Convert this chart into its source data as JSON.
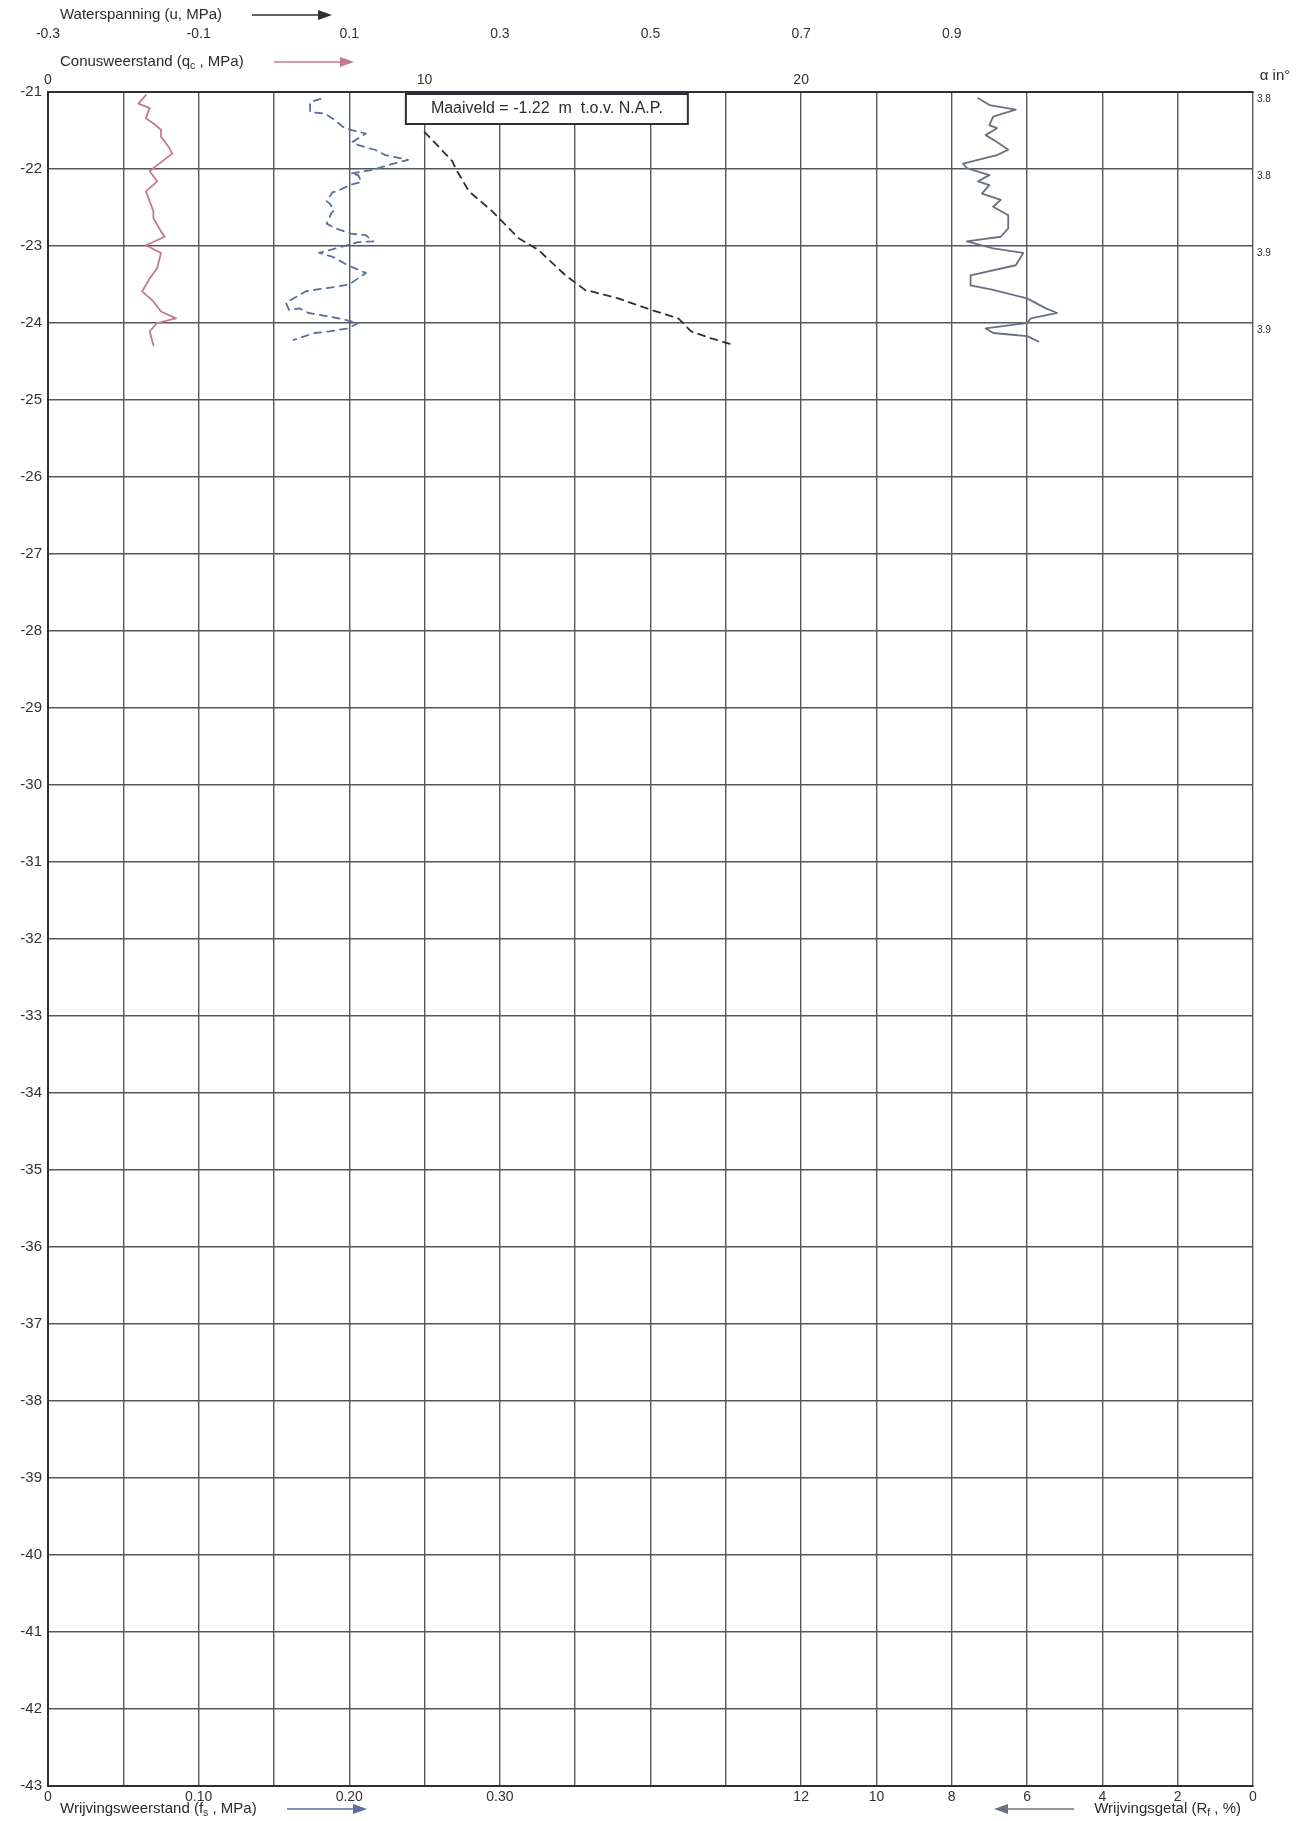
{
  "chart_data": [
    {
      "type": "line",
      "xlabel": "Wrijvingsweerstand (f$_{s}$ , MPa)",
      "x2label": "Conusweerstand (q$_{c}$ , MPa)",
      "xlim": [
        0,
        0.8
      ],
      "xticks": [
        0,
        {
          "value": 0.05,
          "label": null
        },
        {
          "value": 0.1,
          "label": "0.10"
        },
        {
          "value": 0.15,
          "label": null
        },
        {
          "value": 0.2,
          "label": "0.20"
        },
        {
          "value": 0.25,
          "label": null
        },
        {
          "value": 0.3,
          "label": "0.30"
        },
        {
          "value": 0.35,
          "label": null
        },
        {
          "value": 0.4,
          "label": null
        },
        {
          "value": 0.45,
          "label": null
        },
        {
          "value": 0.5,
          "label": null
        },
        {
          "value": 0.55,
          "label": null
        },
        {
          "value": 0.6,
          "label": null
        },
        {
          "value": 0.65,
          "label": null
        },
        {
          "value": 0.7,
          "label": null
        },
        {
          "value": 0.75,
          "label": null
        },
        {
          "value": 0.8,
          "label": null
        }
      ],
      "x2lim": [
        0,
        32
      ],
      "x2ticks": [
        0,
        10,
        20
      ],
      "ylim": [
        -43,
        -21
      ],
      "yticks": [
        -21,
        -22,
        -23,
        -24,
        -25,
        -26,
        -27,
        -28,
        -29,
        -30,
        -31,
        -32,
        -33,
        -34,
        -35,
        -36,
        -37,
        -38,
        -39,
        -40,
        -41,
        -42,
        -43
      ],
      "grid": true,
      "legend": false,
      "marker": "none",
      "annotations": [
        "Maaiveld = -1.22  m  t.o.v. N.A.P."
      ],
      "series": [
        {
          "axis": "x2",
          "color": "#c47a8c",
          "line_style": "solid",
          "x": [
            2.6,
            2.4,
            2.7,
            2.6,
            2.8,
            3.0,
            3.0,
            3.2,
            3.3,
            2.9,
            2.7,
            2.9,
            2.6,
            2.7,
            2.8,
            2.8,
            3.0,
            3.1,
            2.6,
            3.0,
            2.9,
            2.7,
            2.5,
            2.8,
            3.0,
            3.4,
            2.9,
            2.7,
            2.8
          ],
          "values": [
            -21.04,
            -21.15,
            -21.21,
            -21.34,
            -21.41,
            -21.49,
            -21.58,
            -21.71,
            -21.8,
            -21.95,
            -22.03,
            -22.16,
            -22.29,
            -22.42,
            -22.55,
            -22.64,
            -22.81,
            -22.88,
            -22.99,
            -23.09,
            -23.29,
            -23.42,
            -23.59,
            -23.72,
            -23.85,
            -23.94,
            -24.0,
            -24.11,
            -24.29
          ]
        },
        {
          "color": "#5b6f9c",
          "line_style": "dashed",
          "x": [
            0.181,
            0.174,
            0.174,
            0.184,
            0.19,
            0.197,
            0.207,
            0.211,
            0.202,
            0.206,
            0.217,
            0.224,
            0.239,
            0.224,
            0.216,
            0.201,
            0.206,
            0.208,
            0.2,
            0.192,
            0.189,
            0.185,
            0.187,
            0.19,
            0.188,
            0.185,
            0.191,
            0.201,
            0.211,
            0.216,
            0.206,
            0.18,
            0.189,
            0.199,
            0.211,
            0.2,
            0.191,
            0.18,
            0.171,
            0.158,
            0.16,
            0.167,
            0.173,
            0.182,
            0.193,
            0.206,
            0.199,
            0.187,
            0.177,
            0.163
          ],
          "values": [
            -21.09,
            -21.13,
            -21.26,
            -21.28,
            -21.36,
            -21.47,
            -21.52,
            -21.54,
            -21.65,
            -21.69,
            -21.75,
            -21.82,
            -21.88,
            -21.96,
            -22.01,
            -22.06,
            -22.08,
            -22.17,
            -22.21,
            -22.29,
            -22.3,
            -22.42,
            -22.45,
            -22.53,
            -22.58,
            -22.71,
            -22.77,
            -22.84,
            -22.86,
            -22.94,
            -22.95,
            -23.09,
            -23.14,
            -23.25,
            -23.35,
            -23.5,
            -23.53,
            -23.56,
            -23.59,
            -23.74,
            -23.83,
            -23.81,
            -23.87,
            -23.9,
            -23.94,
            -24.0,
            -24.07,
            -24.11,
            -24.13,
            -24.22
          ]
        }
      ]
    },
    {
      "type": "line",
      "xlabel": "Wrijvingsgetal (R$_{f}$ , %)",
      "x2label": "Waterspanning (u, MPa)",
      "y2label": "α in°",
      "xlim": [
        32,
        0
      ],
      "xticks": [
        12,
        10,
        8,
        6,
        4,
        2,
        0
      ],
      "x2lim": [
        -0.3,
        1.3
      ],
      "x2ticks": [
        -0.3,
        -0.1,
        0.1,
        0.3,
        0.5,
        0.7,
        0.9
      ],
      "ylim": [
        -43,
        -21
      ],
      "yticks": [
        -21,
        -22,
        -23,
        -24,
        -25,
        -26,
        -27,
        -28,
        -29,
        -30,
        -31,
        -32,
        -33,
        -34,
        -35,
        -36,
        -37,
        -38,
        -39,
        -40,
        -41,
        -42,
        -43
      ],
      "tick_labels": "x",
      "legend": false,
      "marker": "none",
      "annotations": [
        "3.8",
        "3.8",
        "3.9",
        "3.9"
      ],
      "series": [
        {
          "axis": "x2",
          "color": "#2e3038",
          "line_style": "dashed",
          "x": [
            0.2,
            0.208,
            0.237,
            0.241,
            0.259,
            0.29,
            0.325,
            0.351,
            0.387,
            0.413,
            0.457,
            0.501,
            0.537,
            0.554,
            0.581,
            0.612
          ],
          "values": [
            -21.52,
            -21.6,
            -21.9,
            -21.99,
            -22.29,
            -22.55,
            -22.9,
            -23.05,
            -23.38,
            -23.57,
            -23.68,
            -23.83,
            -23.94,
            -24.11,
            -24.2,
            -24.29
          ]
        },
        {
          "color": "#6b7080",
          "line_style": "solid",
          "x": [
            7.3,
            7.0,
            6.3,
            6.9,
            7.0,
            6.8,
            7.1,
            6.8,
            6.5,
            6.8,
            7.7,
            7.6,
            7.0,
            7.3,
            7.0,
            7.2,
            6.7,
            6.9,
            6.5,
            6.5,
            6.7,
            7.6,
            6.9,
            6.1,
            6.3,
            7.5,
            7.5,
            6.9,
            6.0,
            5.5,
            5.2,
            5.9,
            6.0,
            7.1,
            6.9,
            6.0,
            5.7
          ],
          "values": [
            -21.08,
            -21.17,
            -21.23,
            -21.32,
            -21.43,
            -21.47,
            -21.56,
            -21.65,
            -21.75,
            -21.82,
            -21.93,
            -21.99,
            -22.08,
            -22.16,
            -22.21,
            -22.32,
            -22.4,
            -22.49,
            -22.6,
            -22.77,
            -22.88,
            -22.94,
            -23.03,
            -23.09,
            -23.25,
            -23.38,
            -23.51,
            -23.57,
            -23.68,
            -23.81,
            -23.87,
            -23.94,
            -24.0,
            -24.07,
            -24.13,
            -24.17,
            -24.24
          ]
        }
      ]
    }
  ]
}
